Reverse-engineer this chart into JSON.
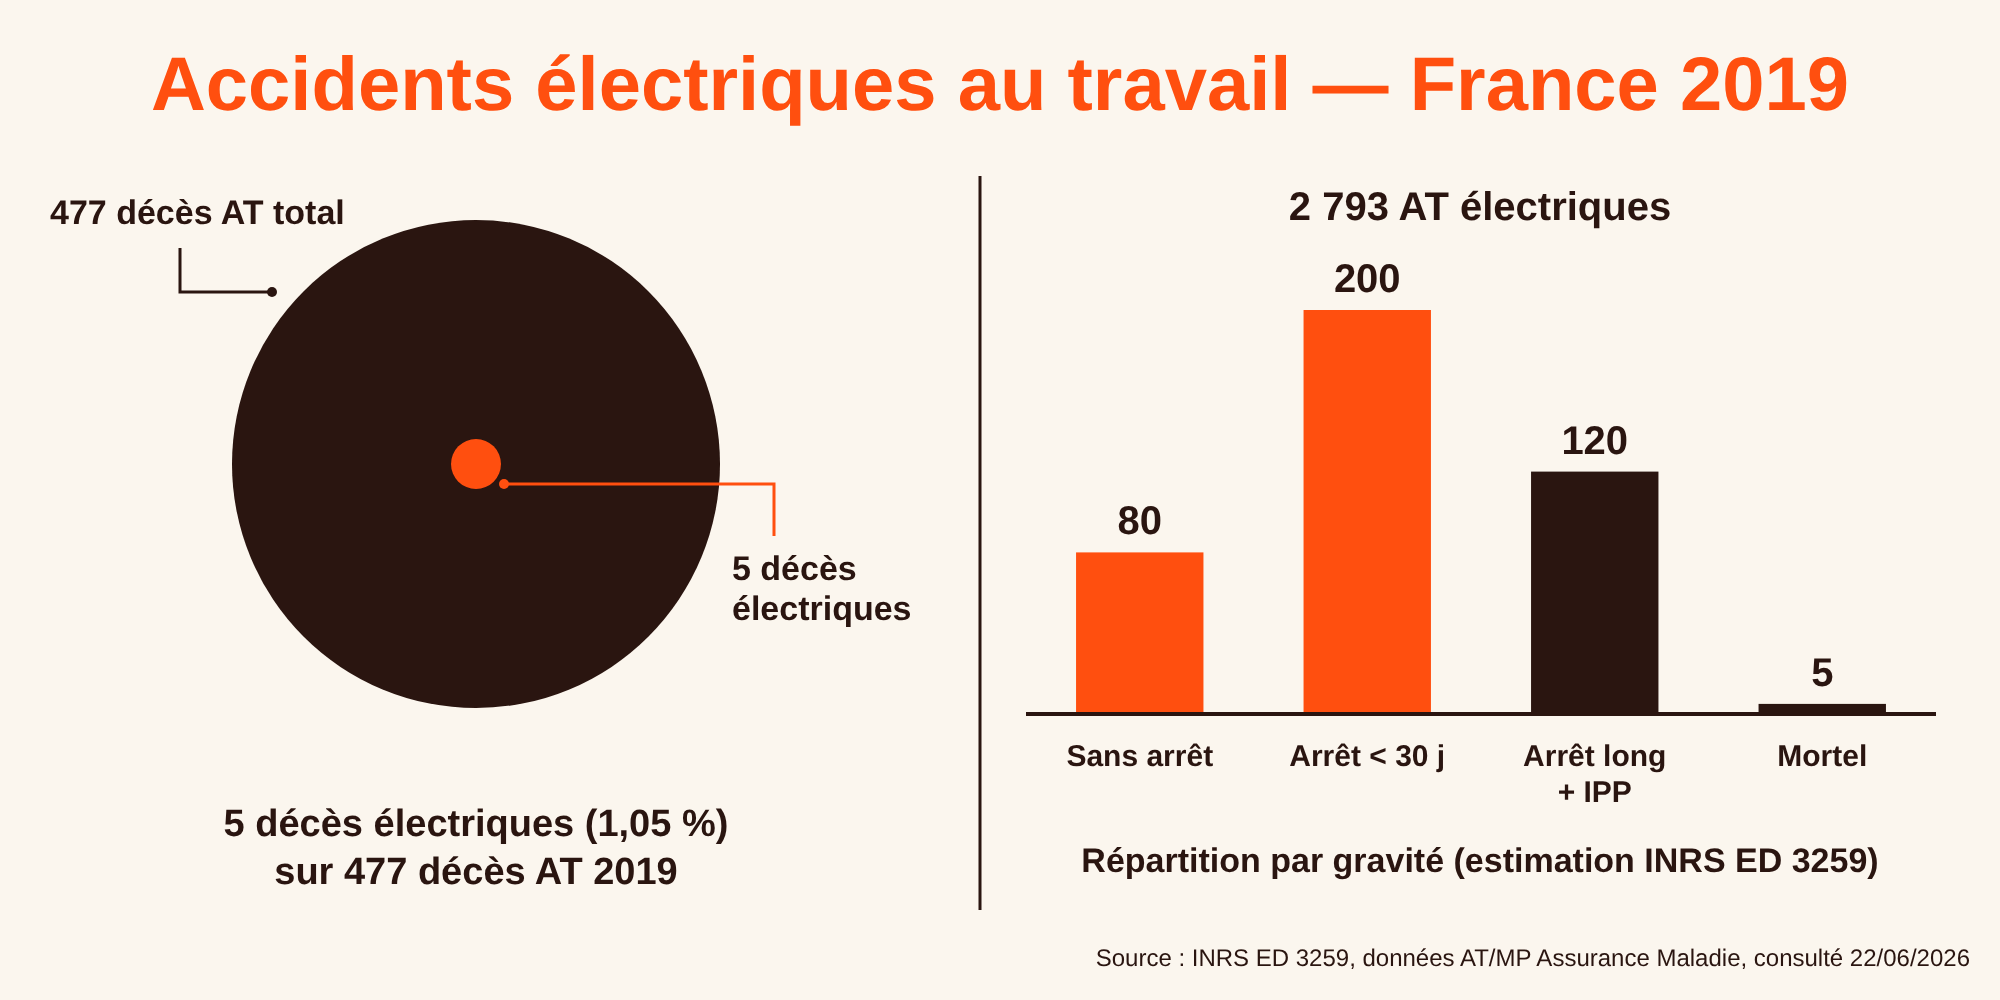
{
  "chart_data": [
    {
      "type": "other",
      "title": "Accidents électriques au travail — France 2019",
      "categories": [
        "décès AT total",
        "décès électriques"
      ],
      "values": [
        477,
        5
      ],
      "value_labels": [
        "477",
        "5"
      ],
      "colors": [
        "#2a1510",
        "#ff4f0f"
      ],
      "annotations": [
        "5 décès électriques (1,05 %) sur 477 décès AT 2019"
      ]
    },
    {
      "type": "bar",
      "title": "2 793 AT électriques",
      "categories": [
        "Sans arrêt",
        "Arrêt < 30 j",
        "Arrêt long + IPP",
        "Mortel"
      ],
      "values": [
        80,
        200,
        120,
        5
      ],
      "colors": [
        "#ff4f0f",
        "#ff4f0f",
        "#2a1510",
        "#2a1510"
      ],
      "data_labels": true,
      "xlabel": "Répartition par gravité (estimation INRS ED 3259)",
      "annotations": [
        "Source : INRS ED 3259, données AT/MP Assurance Maladie, consulté 22/06/2026"
      ]
    }
  ]
}
